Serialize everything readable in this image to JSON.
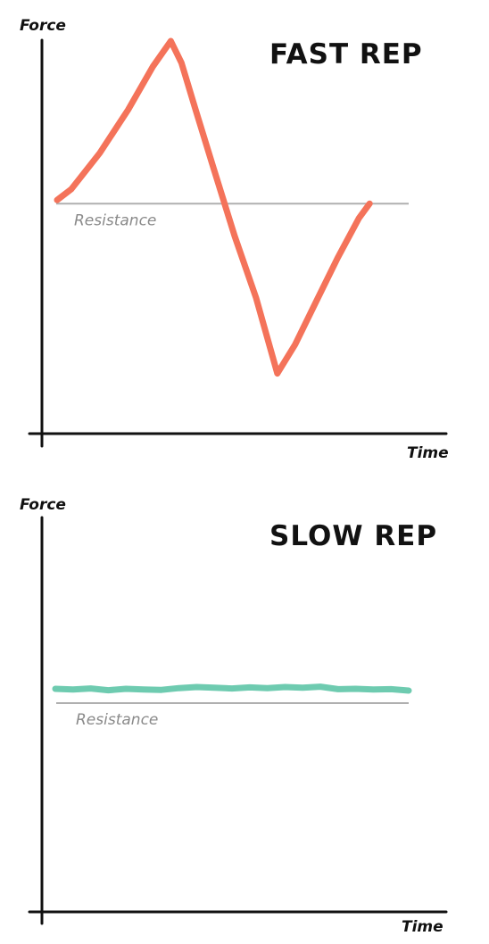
{
  "chart_data": [
    {
      "type": "line",
      "title": "FAST REP",
      "xlabel": "Time",
      "ylabel": "Force",
      "ylim": [
        0,
        10
      ],
      "xlim": [
        0,
        10
      ],
      "reference_line": {
        "label": "Resistance",
        "y": 5.5,
        "color": "#b0b0b0"
      },
      "series": [
        {
          "color": "#f4735a",
          "x": [
            0,
            0.4,
            1.2,
            2.0,
            2.7,
            3.2,
            3.5,
            3.9,
            4.4,
            5.0,
            5.6,
            6.2,
            6.7,
            7.3,
            7.9,
            8.5,
            8.8
          ],
          "y": [
            5.6,
            5.9,
            6.9,
            8.1,
            9.3,
            10.0,
            9.4,
            8.1,
            6.5,
            4.6,
            2.9,
            0.8,
            1.6,
            2.8,
            4.0,
            5.1,
            5.5
          ]
        }
      ]
    },
    {
      "type": "line",
      "title": "SLOW REP",
      "xlabel": "Time",
      "ylabel": "Force",
      "ylim": [
        0,
        10
      ],
      "xlim": [
        0,
        10
      ],
      "reference_line": {
        "label": "Resistance",
        "y": 5.0,
        "color": "#b0b0b0"
      },
      "series": [
        {
          "color": "#6ecbb0",
          "x": [
            0,
            0.5,
            1.0,
            1.5,
            2.0,
            2.5,
            3.0,
            3.5,
            4.0,
            4.5,
            5.0,
            5.5,
            6.0,
            6.5,
            7.0,
            7.5,
            8.0,
            8.5,
            9.0,
            9.5,
            10.0
          ],
          "y": [
            5.4,
            5.38,
            5.41,
            5.36,
            5.4,
            5.38,
            5.37,
            5.42,
            5.45,
            5.43,
            5.41,
            5.44,
            5.42,
            5.45,
            5.43,
            5.46,
            5.39,
            5.4,
            5.38,
            5.39,
            5.35
          ]
        }
      ]
    }
  ]
}
